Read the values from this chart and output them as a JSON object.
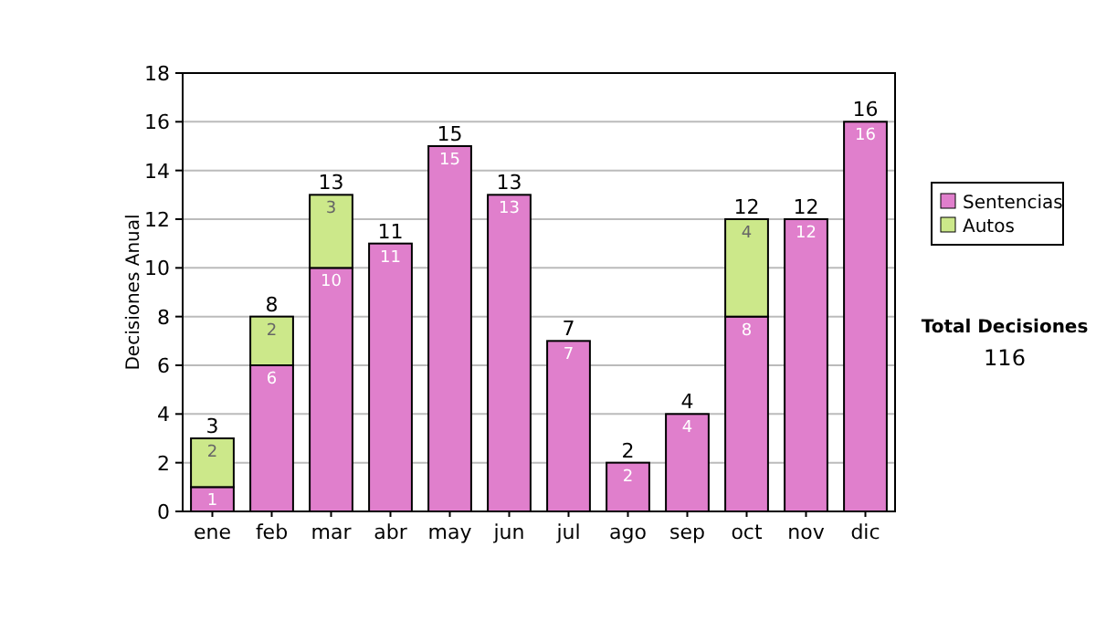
{
  "chart_data": {
    "type": "bar",
    "stacked": true,
    "ylabel": "Decisiones Anual",
    "categories": [
      "ene",
      "feb",
      "mar",
      "abr",
      "may",
      "jun",
      "jul",
      "ago",
      "sep",
      "oct",
      "nov",
      "dic"
    ],
    "series": [
      {
        "name": "Sentencias",
        "color": "#e07fcc",
        "values": [
          1,
          6,
          10,
          11,
          15,
          13,
          7,
          2,
          4,
          8,
          12,
          16
        ]
      },
      {
        "name": "Autos",
        "color": "#cce88a",
        "values": [
          2,
          2,
          3,
          null,
          null,
          null,
          null,
          null,
          null,
          4,
          null,
          null
        ]
      }
    ],
    "ylim": [
      0,
      18
    ],
    "yticks": [
      0,
      2,
      4,
      6,
      8,
      10,
      12,
      14,
      16,
      18
    ],
    "grid": "y",
    "legend": "right",
    "data_labels": true,
    "totals": [
      "3",
      "8",
      "13",
      "11",
      "15",
      "13",
      "7",
      "2",
      "4",
      "12",
      "12",
      "16"
    ],
    "annotations": [
      "Total Decisiones",
      "116"
    ]
  }
}
